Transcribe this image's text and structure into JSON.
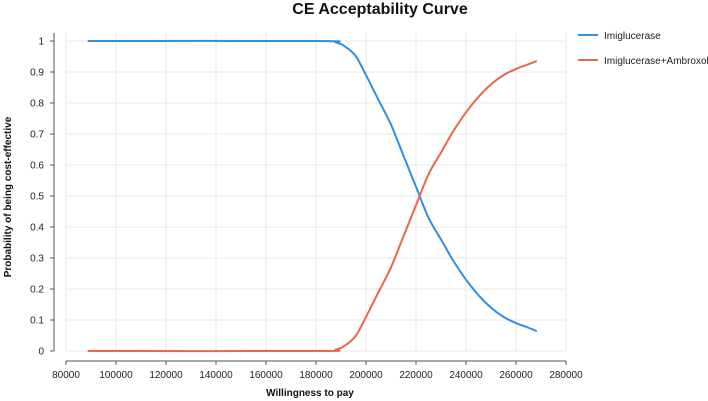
{
  "chart_data": {
    "type": "line",
    "title": "CE Acceptability Curve",
    "xlabel": "Willingness to pay",
    "ylabel": "Probability of being cost-effective",
    "xlim": [
      80000,
      280000
    ],
    "ylim": [
      0,
      1
    ],
    "x_ticks": [
      80000,
      100000,
      120000,
      140000,
      160000,
      180000,
      200000,
      220000,
      240000,
      260000,
      280000
    ],
    "x_tick_labels": [
      "80000",
      "100000",
      "120000",
      "140000",
      "160000",
      "180000",
      "200000",
      "220000",
      "240000",
      "260000",
      "280000"
    ],
    "y_ticks": [
      0,
      0.1,
      0.2,
      0.3,
      0.4,
      0.5,
      0.6,
      0.7,
      0.8,
      0.9,
      1
    ],
    "y_tick_labels": [
      "0",
      "0.1",
      "0.2",
      "0.3",
      "0.4",
      "0.5",
      "0.6",
      "0.7",
      "0.8",
      "0.9",
      "1"
    ],
    "grid": true,
    "legend_position": "top-right",
    "series": [
      {
        "name": "Imiglucerase",
        "color": "#2f8fe0",
        "x": [
          89000,
          180000,
          188000,
          192000,
          196000,
          200000,
          205000,
          210000,
          215000,
          220000,
          225000,
          230000,
          235000,
          240000,
          245000,
          250000,
          255000,
          260000,
          265000,
          268000
        ],
        "y": [
          1.0,
          1.0,
          0.995,
          0.98,
          0.95,
          0.89,
          0.81,
          0.73,
          0.63,
          0.53,
          0.43,
          0.36,
          0.29,
          0.23,
          0.18,
          0.14,
          0.11,
          0.09,
          0.075,
          0.065
        ]
      },
      {
        "name": "Imiglucerase+Ambroxol",
        "color": "#e8674a",
        "x": [
          89000,
          180000,
          188000,
          192000,
          196000,
          200000,
          205000,
          210000,
          215000,
          220000,
          225000,
          230000,
          235000,
          240000,
          245000,
          250000,
          255000,
          260000,
          265000,
          268000
        ],
        "y": [
          0.0,
          0.0,
          0.005,
          0.02,
          0.05,
          0.11,
          0.19,
          0.27,
          0.37,
          0.47,
          0.57,
          0.64,
          0.71,
          0.77,
          0.82,
          0.86,
          0.89,
          0.91,
          0.925,
          0.935
        ]
      }
    ]
  }
}
